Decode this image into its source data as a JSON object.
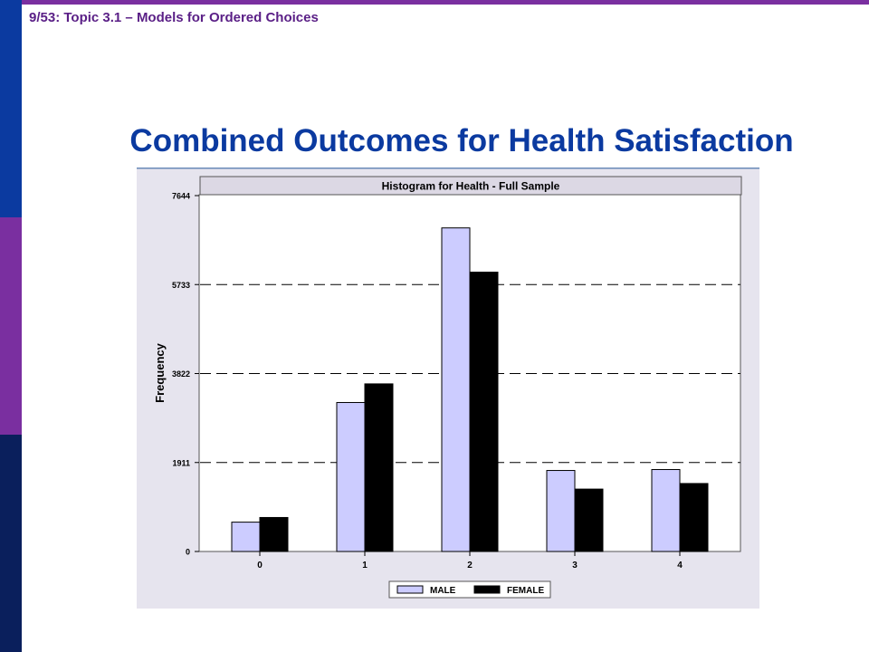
{
  "slide": {
    "header": "9/53: Topic 3.1 – Models for Ordered Choices",
    "title": "Combined Outcomes for Health Satisfaction"
  },
  "colors": {
    "accent_blue": "#0b3aa0",
    "accent_purple": "#7a2fa0",
    "male": "#ccccff",
    "female": "#000000",
    "panel": "#e6e4ee"
  },
  "chart_data": {
    "type": "bar",
    "title": "Histogram for Health - Full Sample",
    "xlabel": "",
    "ylabel": "Frequency",
    "categories": [
      "0",
      "1",
      "2",
      "3",
      "4"
    ],
    "series": [
      {
        "name": "MALE",
        "values": [
          630,
          3200,
          6950,
          1740,
          1760
        ]
      },
      {
        "name": "FEMALE",
        "values": [
          730,
          3600,
          6000,
          1340,
          1460
        ]
      }
    ],
    "ylim": [
      0,
      7644
    ],
    "yticks": [
      0,
      1911,
      3822,
      5733,
      7644
    ],
    "grid": "dashed-horizontal",
    "legend": "bottom-center"
  }
}
